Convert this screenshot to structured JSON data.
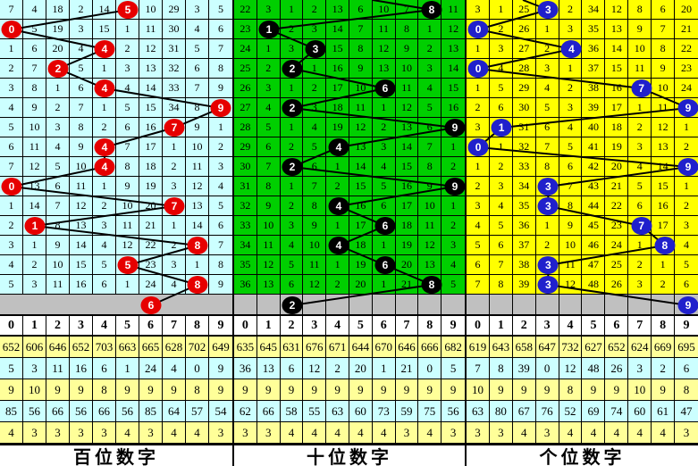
{
  "digit_header": [
    "0",
    "1",
    "2",
    "3",
    "4",
    "5",
    "6",
    "7",
    "8",
    "9"
  ],
  "colors": {
    "hundreds_bg": "#CCFFFF",
    "tens_bg": "#00CF00",
    "units_bg": "#FFFF00",
    "hundreds_ball": "#E60000",
    "tens_ball": "#000000",
    "units_ball": "#2020CC",
    "gray_row_bg": "#C0C0C0",
    "stat_yellow": "#FFFF99",
    "stat_cyan": "#CCFFFF",
    "line": "#000000"
  },
  "panels": [
    {
      "id": "hundreds",
      "footer": "百位数字",
      "bg": "#CCFFFF",
      "ball_color": "#E60000",
      "rows": [
        {
          "cells": [
            7,
            4,
            18,
            2,
            14,
            5,
            10,
            29,
            3,
            5
          ],
          "ball": 5
        },
        {
          "cells": [
            0,
            5,
            19,
            3,
            15,
            1,
            11,
            30,
            4,
            6
          ],
          "ball": 0
        },
        {
          "cells": [
            1,
            6,
            20,
            4,
            4,
            2,
            12,
            31,
            5,
            7
          ],
          "ball": 4
        },
        {
          "cells": [
            2,
            7,
            2,
            5,
            1,
            3,
            13,
            32,
            6,
            8
          ],
          "ball": 2
        },
        {
          "cells": [
            3,
            8,
            1,
            6,
            4,
            4,
            14,
            33,
            7,
            9
          ],
          "ball": 4
        },
        {
          "cells": [
            4,
            9,
            2,
            7,
            1,
            5,
            15,
            34,
            8,
            9
          ],
          "ball": 9
        },
        {
          "cells": [
            5,
            10,
            3,
            8,
            2,
            6,
            16,
            7,
            9,
            1
          ],
          "ball": 7
        },
        {
          "cells": [
            6,
            11,
            4,
            9,
            4,
            7,
            17,
            1,
            10,
            2
          ],
          "ball": 4
        },
        {
          "cells": [
            7,
            12,
            5,
            10,
            4,
            8,
            18,
            2,
            11,
            3
          ],
          "ball": 4
        },
        {
          "cells": [
            0,
            13,
            6,
            11,
            1,
            9,
            19,
            3,
            12,
            4
          ],
          "ball": 0
        },
        {
          "cells": [
            1,
            14,
            7,
            12,
            2,
            10,
            20,
            7,
            13,
            5
          ],
          "ball": 7
        },
        {
          "cells": [
            2,
            1,
            8,
            13,
            3,
            11,
            21,
            1,
            14,
            6
          ],
          "ball": 1
        },
        {
          "cells": [
            3,
            1,
            9,
            14,
            4,
            12,
            22,
            2,
            8,
            7
          ],
          "ball": 8
        },
        {
          "cells": [
            4,
            2,
            10,
            15,
            5,
            5,
            23,
            3,
            1,
            8
          ],
          "ball": 5
        },
        {
          "cells": [
            5,
            3,
            11,
            16,
            6,
            1,
            24,
            4,
            8,
            9
          ],
          "ball": 8
        }
      ],
      "gray_ball": {
        "col": 6,
        "label": "6"
      },
      "gray_grid_lines": false,
      "stats": [
        [
          "652",
          "606",
          "646",
          "652",
          "703",
          "663",
          "665",
          "628",
          "702",
          "649"
        ],
        [
          "5",
          "3",
          "11",
          "16",
          "6",
          "1",
          "24",
          "4",
          "0",
          "9"
        ],
        [
          "9",
          "10",
          "9",
          "9",
          "8",
          "9",
          "9",
          "9",
          "8",
          "9"
        ],
        [
          "85",
          "56",
          "66",
          "56",
          "66",
          "56",
          "85",
          "64",
          "57",
          "54"
        ],
        [
          "4",
          "3",
          "3",
          "3",
          "3",
          "4",
          "3",
          "4",
          "4",
          "3"
        ]
      ]
    },
    {
      "id": "tens",
      "footer": "十位数字",
      "bg": "#00CF00",
      "ball_color": "#000000",
      "rows": [
        {
          "cells": [
            22,
            3,
            1,
            2,
            13,
            6,
            10,
            7,
            8,
            11
          ],
          "ball": 8
        },
        {
          "cells": [
            23,
            1,
            2,
            3,
            14,
            7,
            11,
            8,
            1,
            12
          ],
          "ball": 1
        },
        {
          "cells": [
            24,
            1,
            3,
            3,
            15,
            8,
            12,
            9,
            2,
            13
          ],
          "ball": 3
        },
        {
          "cells": [
            25,
            2,
            2,
            1,
            16,
            9,
            13,
            10,
            3,
            14
          ],
          "ball": 2
        },
        {
          "cells": [
            26,
            3,
            1,
            2,
            17,
            10,
            6,
            11,
            4,
            15
          ],
          "ball": 6
        },
        {
          "cells": [
            27,
            4,
            2,
            3,
            18,
            11,
            1,
            12,
            5,
            16
          ],
          "ball": 2
        },
        {
          "cells": [
            28,
            5,
            1,
            4,
            19,
            12,
            2,
            13,
            6,
            9
          ],
          "ball": 9
        },
        {
          "cells": [
            29,
            6,
            2,
            5,
            4,
            13,
            3,
            14,
            7,
            1
          ],
          "ball": 4
        },
        {
          "cells": [
            30,
            7,
            2,
            6,
            1,
            14,
            4,
            15,
            8,
            2
          ],
          "ball": 2
        },
        {
          "cells": [
            31,
            8,
            1,
            7,
            2,
            15,
            5,
            16,
            9,
            9
          ],
          "ball": 9
        },
        {
          "cells": [
            32,
            9,
            2,
            8,
            4,
            16,
            6,
            17,
            10,
            1
          ],
          "ball": 4
        },
        {
          "cells": [
            33,
            10,
            3,
            9,
            1,
            17,
            6,
            18,
            11,
            2
          ],
          "ball": 6
        },
        {
          "cells": [
            34,
            11,
            4,
            10,
            4,
            18,
            1,
            19,
            12,
            3
          ],
          "ball": 4
        },
        {
          "cells": [
            35,
            12,
            5,
            11,
            1,
            19,
            6,
            20,
            13,
            4
          ],
          "ball": 6
        },
        {
          "cells": [
            36,
            13,
            6,
            12,
            2,
            20,
            1,
            21,
            8,
            5
          ],
          "ball": 8
        }
      ],
      "gray_ball": {
        "col": 2,
        "label": "2"
      },
      "gray_grid_lines": true,
      "stats": [
        [
          "635",
          "645",
          "631",
          "676",
          "671",
          "644",
          "670",
          "646",
          "666",
          "682"
        ],
        [
          "36",
          "13",
          "6",
          "12",
          "2",
          "20",
          "1",
          "21",
          "0",
          "5"
        ],
        [
          "9",
          "9",
          "9",
          "9",
          "9",
          "9",
          "9",
          "9",
          "9",
          "9"
        ],
        [
          "62",
          "66",
          "58",
          "55",
          "63",
          "60",
          "73",
          "59",
          "75",
          "56"
        ],
        [
          "3",
          "3",
          "4",
          "4",
          "4",
          "4",
          "4",
          "3",
          "4",
          "3"
        ]
      ]
    },
    {
      "id": "units",
      "footer": "个位数字",
      "bg": "#FFFF00",
      "ball_color": "#2020CC",
      "rows": [
        {
          "cells": [
            3,
            1,
            25,
            3,
            2,
            34,
            12,
            8,
            6,
            20
          ],
          "ball": 3
        },
        {
          "cells": [
            0,
            2,
            26,
            1,
            3,
            35,
            13,
            9,
            7,
            21
          ],
          "ball": 0
        },
        {
          "cells": [
            1,
            3,
            27,
            2,
            4,
            36,
            14,
            10,
            8,
            22
          ],
          "ball": 4
        },
        {
          "cells": [
            0,
            4,
            28,
            3,
            1,
            37,
            15,
            11,
            9,
            23
          ],
          "ball": 0
        },
        {
          "cells": [
            1,
            5,
            29,
            4,
            2,
            38,
            16,
            7,
            10,
            24
          ],
          "ball": 7
        },
        {
          "cells": [
            2,
            6,
            30,
            5,
            3,
            39,
            17,
            1,
            11,
            9
          ],
          "ball": 9
        },
        {
          "cells": [
            3,
            1,
            31,
            6,
            4,
            40,
            18,
            2,
            12,
            1
          ],
          "ball": 1
        },
        {
          "cells": [
            0,
            1,
            32,
            7,
            5,
            41,
            19,
            3,
            13,
            2
          ],
          "ball": 0
        },
        {
          "cells": [
            1,
            2,
            33,
            8,
            6,
            42,
            20,
            4,
            14,
            9
          ],
          "ball": 9
        },
        {
          "cells": [
            2,
            3,
            34,
            3,
            7,
            43,
            21,
            5,
            15,
            1
          ],
          "ball": 3
        },
        {
          "cells": [
            3,
            4,
            35,
            3,
            8,
            44,
            22,
            6,
            16,
            2
          ],
          "ball": 3
        },
        {
          "cells": [
            4,
            5,
            36,
            1,
            9,
            45,
            23,
            7,
            17,
            3
          ],
          "ball": 7
        },
        {
          "cells": [
            5,
            6,
            37,
            2,
            10,
            46,
            24,
            1,
            8,
            4
          ],
          "ball": 8
        },
        {
          "cells": [
            6,
            7,
            38,
            3,
            11,
            47,
            25,
            2,
            1,
            5
          ],
          "ball": 3
        },
        {
          "cells": [
            7,
            8,
            39,
            3,
            12,
            48,
            26,
            3,
            2,
            6
          ],
          "ball": 3
        }
      ],
      "gray_ball": {
        "col": 9,
        "label": "9"
      },
      "gray_grid_lines": true,
      "stats": [
        [
          "619",
          "643",
          "658",
          "647",
          "732",
          "627",
          "652",
          "624",
          "669",
          "695"
        ],
        [
          "7",
          "8",
          "39",
          "0",
          "12",
          "48",
          "26",
          "3",
          "2",
          "6"
        ],
        [
          "10",
          "9",
          "9",
          "9",
          "8",
          "9",
          "9",
          "10",
          "9",
          "8"
        ],
        [
          "63",
          "80",
          "67",
          "76",
          "52",
          "69",
          "74",
          "60",
          "61",
          "47"
        ],
        [
          "3",
          "3",
          "4",
          "3",
          "4",
          "4",
          "4",
          "4",
          "4",
          "3"
        ]
      ]
    }
  ],
  "chart_data": {
    "type": "table",
    "title": "福彩3D百位/十位/个位走势图",
    "panel_labels": [
      "百位数字",
      "十位数字",
      "个位数字"
    ],
    "drawn_digit_series": [
      {
        "name": "百位数字",
        "values": [
          5,
          0,
          4,
          2,
          4,
          9,
          7,
          4,
          4,
          0,
          7,
          1,
          8,
          5,
          8,
          6
        ]
      },
      {
        "name": "十位数字",
        "values": [
          8,
          1,
          3,
          2,
          6,
          2,
          9,
          4,
          2,
          9,
          4,
          6,
          4,
          6,
          8,
          2
        ]
      },
      {
        "name": "个位数字",
        "values": [
          3,
          0,
          4,
          0,
          7,
          9,
          1,
          0,
          9,
          3,
          3,
          7,
          8,
          3,
          3,
          9
        ]
      }
    ],
    "digit_columns": [
      0,
      1,
      2,
      3,
      4,
      5,
      6,
      7,
      8,
      9
    ],
    "stats_rows_per_panel": 5
  }
}
